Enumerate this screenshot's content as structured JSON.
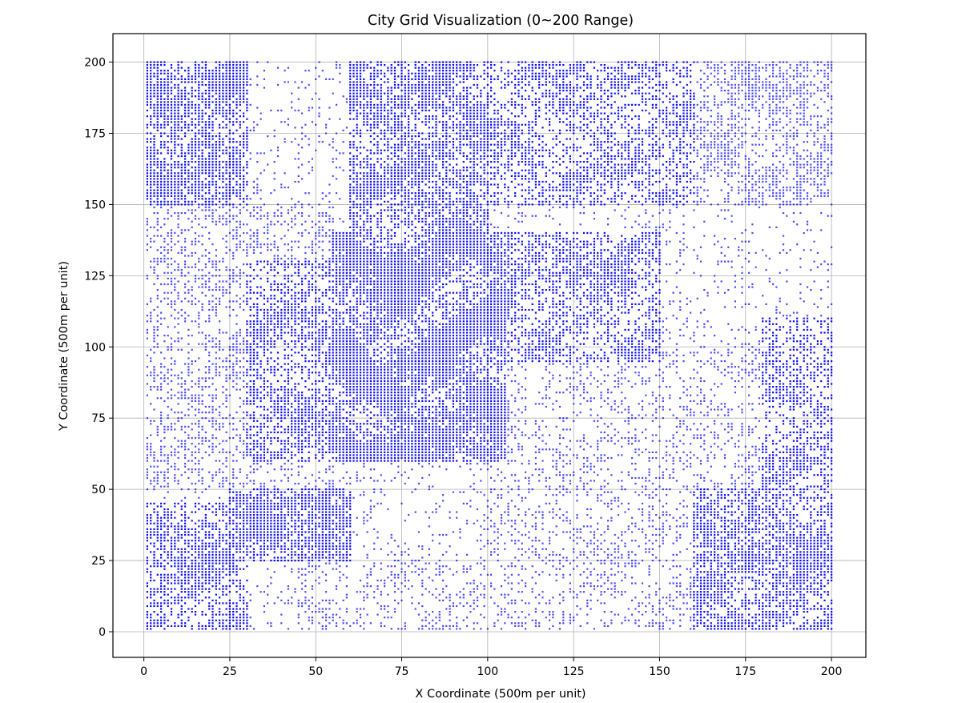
{
  "chart_data": {
    "type": "scatter",
    "title": "City Grid Visualization (0~200 Range)",
    "xlabel": "X Coordinate (500m per unit)",
    "ylabel": "Y Coordinate (500m per unit)",
    "xlim": [
      -9,
      210
    ],
    "ylim": [
      -9,
      210
    ],
    "xticks": [
      "0",
      "25",
      "50",
      "75",
      "100",
      "125",
      "150",
      "175",
      "200"
    ],
    "yticks": [
      "0",
      "25",
      "50",
      "75",
      "100",
      "125",
      "150",
      "175",
      "200"
    ],
    "grid": true,
    "legend": "none",
    "marker_color": "#0000ff",
    "grid_step": 1,
    "series": [
      {
        "values_note_free": true,
        "dense_regions": [
          {
            "x": [
              55,
              105
            ],
            "y": [
              60,
              140
            ],
            "density": 0.92
          },
          {
            "x": [
              60,
              100
            ],
            "y": [
              140,
              200
            ],
            "density": 0.78
          },
          {
            "x": [
              0,
              30
            ],
            "y": [
              150,
              200
            ],
            "density": 0.8
          },
          {
            "x": [
              25,
              60
            ],
            "y": [
              25,
              50
            ],
            "density": 0.85
          },
          {
            "x": [
              0,
              30
            ],
            "y": [
              0,
              45
            ],
            "density": 0.7
          },
          {
            "x": [
              160,
              200
            ],
            "y": [
              0,
              50
            ],
            "density": 0.75
          },
          {
            "x": [
              100,
              150
            ],
            "y": [
              95,
              140
            ],
            "density": 0.6
          },
          {
            "x": [
              30,
              60
            ],
            "y": [
              60,
              130
            ],
            "density": 0.65
          },
          {
            "x": [
              150,
              200
            ],
            "y": [
              150,
              200
            ],
            "density": 0.5
          },
          {
            "x": [
              180,
              200
            ],
            "y": [
              50,
              110
            ],
            "density": 0.55
          },
          {
            "x": [
              100,
              160
            ],
            "y": [
              150,
              200
            ],
            "density": 0.55
          },
          {
            "x": [
              0,
              55
            ],
            "y": [
              50,
              150
            ],
            "density": 0.38
          },
          {
            "x": [
              100,
              200
            ],
            "y": [
              0,
              100
            ],
            "density": 0.28
          },
          {
            "x": [
              45,
              100
            ],
            "y": [
              0,
              25
            ],
            "density": 0.3
          }
        ],
        "background_density": 0.12
      }
    ]
  }
}
